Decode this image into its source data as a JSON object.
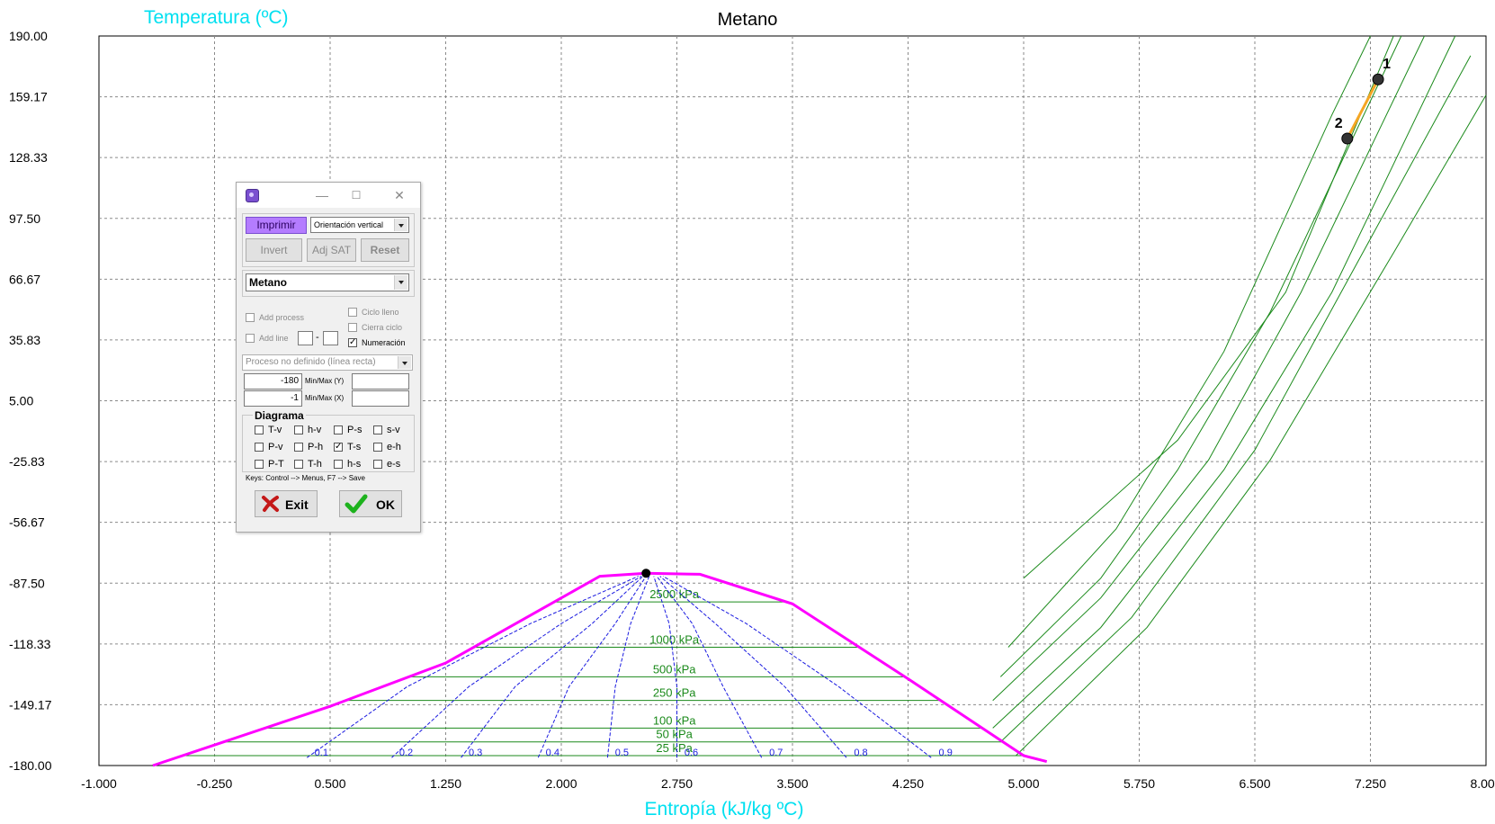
{
  "chart_data": {
    "type": "line",
    "title": "Metano",
    "xlabel": "Entropía (kJ/kg ºC)",
    "ylabel": "Temperatura (ºC)",
    "xlim": [
      -1.0,
      8.0
    ],
    "ylim": [
      -180.0,
      190.0
    ],
    "x_ticks": [
      "-1.000",
      "-0.250",
      "0.500",
      "1.250",
      "2.000",
      "2.750",
      "3.500",
      "4.250",
      "5.000",
      "5.750",
      "6.500",
      "7.250",
      "8.000"
    ],
    "y_ticks": [
      "190.00",
      "159.17",
      "128.33",
      "97.50",
      "66.67",
      "35.83",
      "5.00",
      "-25.83",
      "-56.67",
      "-87.50",
      "-118.33",
      "-149.17",
      "-180.00"
    ],
    "grid": true,
    "colors": {
      "dome": "#ff00ff",
      "isobar": "#1b8a1b",
      "quality": "#1a1ae0",
      "process": "#f5a623",
      "axis_title": "#00e0f0",
      "critical_point": "#000000"
    },
    "saturation_dome": [
      [
        -0.65,
        -180.0
      ],
      [
        0.5,
        -150.0
      ],
      [
        1.25,
        -128.0
      ],
      [
        2.0,
        -95.0
      ],
      [
        2.25,
        -84.0
      ],
      [
        2.55,
        -82.5
      ],
      [
        2.9,
        -83.0
      ],
      [
        3.5,
        -98.0
      ],
      [
        4.25,
        -136.0
      ],
      [
        5.0,
        -175.0
      ],
      [
        5.15,
        -178.0
      ]
    ],
    "critical_point": [
      2.55,
      -82.5
    ],
    "isobars": [
      {
        "label": "2500 kPa",
        "tsat": -97.0,
        "line": [
          [
            5.0,
            -85.0
          ],
          [
            6.0,
            -15.0
          ],
          [
            6.7,
            60.0
          ],
          [
            7.4,
            190.0
          ]
        ]
      },
      {
        "label": "1000 kPa",
        "tsat": -120.0,
        "line": [
          [
            4.9,
            -120.0
          ],
          [
            5.6,
            -60.0
          ],
          [
            6.3,
            30.0
          ],
          [
            7.0,
            150.0
          ],
          [
            7.25,
            190.0
          ]
        ]
      },
      {
        "label": "500 kPa",
        "tsat": -135.0,
        "line": [
          [
            4.85,
            -135.0
          ],
          [
            5.5,
            -85.0
          ],
          [
            6.0,
            -30.0
          ],
          [
            6.6,
            50.0
          ],
          [
            7.45,
            190.0
          ]
        ]
      },
      {
        "label": "250 kPa",
        "tsat": -147.0,
        "line": [
          [
            4.8,
            -147.0
          ],
          [
            5.5,
            -95.0
          ],
          [
            6.2,
            -25.0
          ],
          [
            6.8,
            60.0
          ],
          [
            7.6,
            190.0
          ]
        ]
      },
      {
        "label": "100 kPa",
        "tsat": -161.0,
        "line": [
          [
            4.8,
            -161.0
          ],
          [
            5.5,
            -110.0
          ],
          [
            6.3,
            -30.0
          ],
          [
            7.0,
            60.0
          ],
          [
            7.8,
            190.0
          ]
        ]
      },
      {
        "label": "50 kPa",
        "tsat": -168.0,
        "line": [
          [
            4.85,
            -168.0
          ],
          [
            5.7,
            -105.0
          ],
          [
            6.5,
            -20.0
          ],
          [
            7.2,
            80.0
          ],
          [
            7.9,
            180.0
          ]
        ]
      },
      {
        "label": "25 kPa",
        "tsat": -175.0,
        "line": [
          [
            4.95,
            -175.0
          ],
          [
            5.8,
            -110.0
          ],
          [
            6.6,
            -25.0
          ],
          [
            7.4,
            80.0
          ],
          [
            8.0,
            160.0
          ]
        ]
      }
    ],
    "quality_lines": [
      {
        "label": "0.1",
        "points": [
          [
            0.35,
            -176.0
          ],
          [
            1.0,
            -140.0
          ],
          [
            1.8,
            -108.0
          ],
          [
            2.5,
            -84.0
          ]
        ]
      },
      {
        "label": "0.2",
        "points": [
          [
            0.9,
            -176.0
          ],
          [
            1.4,
            -140.0
          ],
          [
            2.0,
            -108.0
          ],
          [
            2.52,
            -84.0
          ]
        ]
      },
      {
        "label": "0.3",
        "points": [
          [
            1.35,
            -176.0
          ],
          [
            1.7,
            -140.0
          ],
          [
            2.2,
            -108.0
          ],
          [
            2.53,
            -84.0
          ]
        ]
      },
      {
        "label": "0.4",
        "points": [
          [
            1.85,
            -176.0
          ],
          [
            2.05,
            -140.0
          ],
          [
            2.35,
            -108.0
          ],
          [
            2.55,
            -84.0
          ]
        ]
      },
      {
        "label": "0.5",
        "points": [
          [
            2.3,
            -176.0
          ],
          [
            2.35,
            -140.0
          ],
          [
            2.45,
            -108.0
          ],
          [
            2.57,
            -84.0
          ]
        ]
      },
      {
        "label": "0.6",
        "points": [
          [
            2.75,
            -176.0
          ],
          [
            2.75,
            -140.0
          ],
          [
            2.7,
            -108.0
          ],
          [
            2.6,
            -84.0
          ]
        ]
      },
      {
        "label": "0.7",
        "points": [
          [
            3.3,
            -176.0
          ],
          [
            3.05,
            -140.0
          ],
          [
            2.85,
            -108.0
          ],
          [
            2.62,
            -84.0
          ]
        ]
      },
      {
        "label": "0.8",
        "points": [
          [
            3.85,
            -176.0
          ],
          [
            3.45,
            -140.0
          ],
          [
            3.0,
            -108.0
          ],
          [
            2.64,
            -84.0
          ]
        ]
      },
      {
        "label": "0.9",
        "points": [
          [
            4.4,
            -176.0
          ],
          [
            3.8,
            -140.0
          ],
          [
            3.2,
            -108.0
          ],
          [
            2.66,
            -84.0
          ]
        ]
      }
    ],
    "process": {
      "points": [
        {
          "label": "1",
          "x": 7.3,
          "y": 168.0
        },
        {
          "label": "2",
          "x": 7.1,
          "y": 138.0
        }
      ]
    }
  },
  "dialog": {
    "imprimir": "Imprimir",
    "orientation": "Orientación vertical",
    "invert": "Invert",
    "adj_sat": "Adj SAT",
    "reset": "Reset",
    "substance": "Metano",
    "add_process": "Add process",
    "add_line": "Add line",
    "dash": "-",
    "ciclo_lleno": "Ciclo lleno",
    "cierra_ciclo": "Cierra ciclo",
    "numeracion": "Numeración",
    "process_type": "Proceso no definido (línea recta)",
    "min_y": "-180",
    "min_y_label": "Min/Max (Y)",
    "min_x": "-1",
    "min_x_label": "Min/Max (X)",
    "diagrama": "Diagrama",
    "diagrams": [
      {
        "label": "T-v",
        "checked": false
      },
      {
        "label": "h-v",
        "checked": false
      },
      {
        "label": "P-s",
        "checked": false
      },
      {
        "label": "s-v",
        "checked": false
      },
      {
        "label": "P-v",
        "checked": false
      },
      {
        "label": "P-h",
        "checked": false
      },
      {
        "label": "T-s",
        "checked": true
      },
      {
        "label": "e-h",
        "checked": false
      },
      {
        "label": "P-T",
        "checked": false
      },
      {
        "label": "T-h",
        "checked": false
      },
      {
        "label": "h-s",
        "checked": false
      },
      {
        "label": "e-s",
        "checked": false
      }
    ],
    "keys_hint": "Keys: Control --> Menus,       F7 --> Save",
    "exit": "Exit",
    "ok": "OK"
  }
}
